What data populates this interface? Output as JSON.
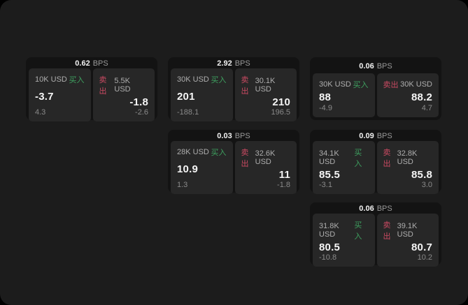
{
  "labels": {
    "bps": "BPS",
    "buy": "买入",
    "sell": "卖出"
  },
  "colors": {
    "window_bg": "#1c1c1c",
    "card_bg": "#131313",
    "panel_bg": "#272727",
    "buy_green": "#3ea05f",
    "sell_red": "#ca4a62"
  },
  "cards": [
    {
      "row": 1,
      "col": 1,
      "bps": "0.62",
      "buy": {
        "amount": "10K USD",
        "price": "-3.7",
        "delta": "4.3"
      },
      "sell": {
        "amount": "5.5K USD",
        "price": "-1.8",
        "delta": "-2.6"
      }
    },
    {
      "row": 1,
      "col": 2,
      "bps": "2.92",
      "buy": {
        "amount": "30K USD",
        "price": "201",
        "delta": "-188.1"
      },
      "sell": {
        "amount": "30.1K USD",
        "price": "210",
        "delta": "196.5"
      }
    },
    {
      "row": 1,
      "col": 3,
      "bps": "0.06",
      "buy": {
        "amount": "30K USD",
        "price": "88",
        "delta": "-4.9"
      },
      "sell": {
        "amount": "30K USD",
        "price": "88.2",
        "delta": "4.7"
      }
    },
    {
      "row": 2,
      "col": 2,
      "bps": "0.03",
      "buy": {
        "amount": "28K USD",
        "price": "10.9",
        "delta": "1.3"
      },
      "sell": {
        "amount": "32.6K USD",
        "price": "11",
        "delta": "-1.8"
      }
    },
    {
      "row": 2,
      "col": 3,
      "bps": "0.09",
      "buy": {
        "amount": "34.1K USD",
        "price": "85.5",
        "delta": "-3.1"
      },
      "sell": {
        "amount": "32.8K USD",
        "price": "85.8",
        "delta": "3.0"
      }
    },
    {
      "row": 3,
      "col": 3,
      "bps": "0.06",
      "buy": {
        "amount": "31.8K USD",
        "price": "80.5",
        "delta": "-10.8"
      },
      "sell": {
        "amount": "39.1K USD",
        "price": "80.7",
        "delta": "10.2"
      }
    }
  ]
}
